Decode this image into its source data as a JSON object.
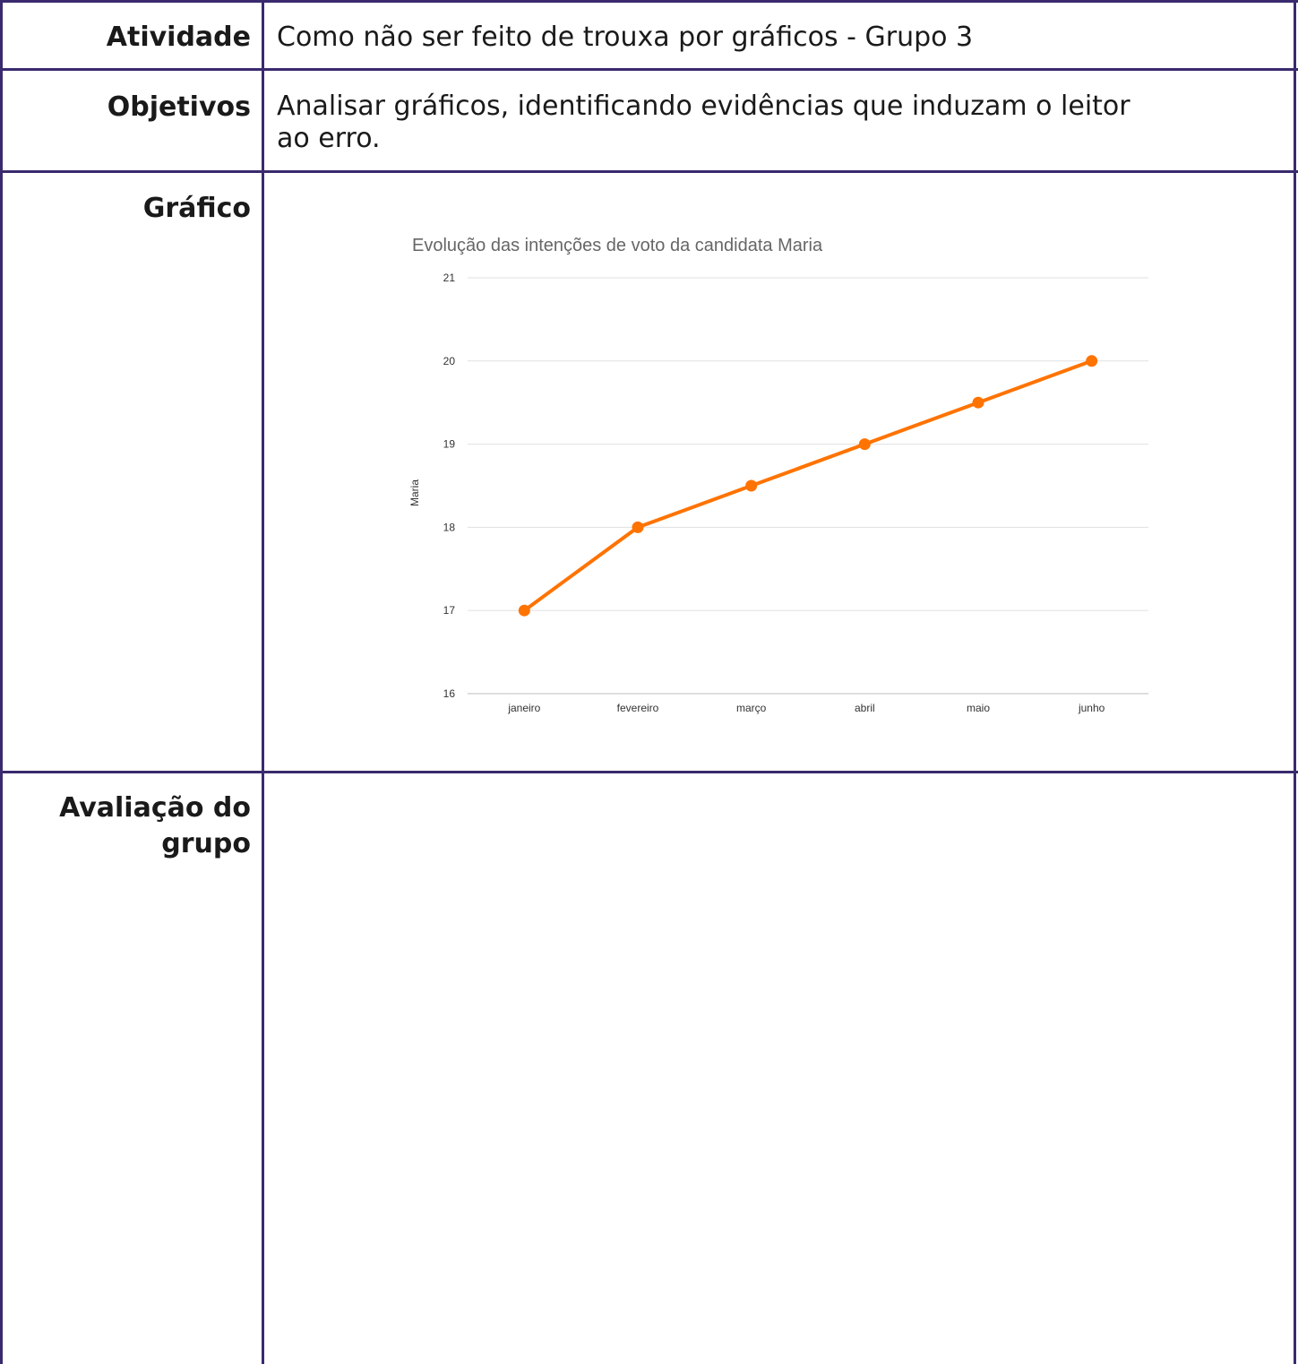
{
  "rows": {
    "atividade": {
      "label": "Atividade",
      "value": "Como não ser feito de trouxa por gráficos - Grupo 3"
    },
    "objetivos": {
      "label": "Objetivos",
      "value_line1": "Analisar gráficos, identificando evidências que induzam o leitor",
      "value_line2": "ao erro."
    },
    "grafico": {
      "label": "Gráfico"
    },
    "avaliacao": {
      "label_line1": "Avaliação do",
      "label_line2": "grupo",
      "value": ""
    }
  },
  "colors": {
    "border": "#3a2a6e",
    "series": "#ff7300",
    "gridline": "#e0e0e0"
  },
  "chart_data": {
    "type": "line",
    "title": "Evolução das intenções de voto da candidata Maria",
    "xlabel": "",
    "ylabel": "Maria",
    "categories": [
      "janeiro",
      "fevereiro",
      "março",
      "abril",
      "maio",
      "junho"
    ],
    "series": [
      {
        "values": [
          17,
          18,
          18.5,
          19,
          19.5,
          20
        ]
      }
    ],
    "ylim": [
      16,
      21
    ],
    "yticks": [
      16,
      17,
      18,
      19,
      20,
      21
    ],
    "grid": true,
    "legend": "none"
  }
}
